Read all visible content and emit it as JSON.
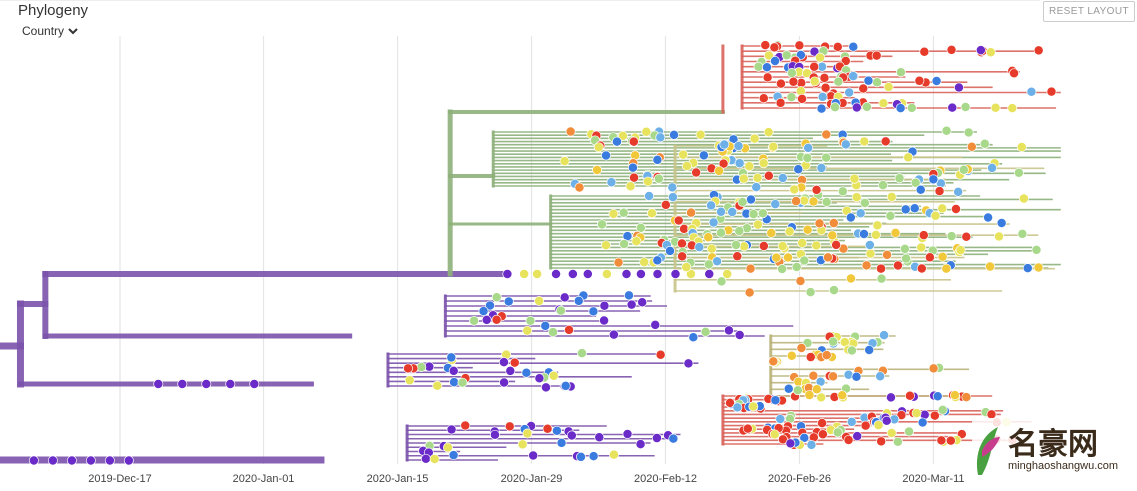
{
  "header": {
    "title": "Phylogeny",
    "color_by": "Country",
    "reset_label": "RESET LAYOUT"
  },
  "chart_data": {
    "type": "phylogenetic-tree",
    "title": "Phylogeny",
    "xlabel": "",
    "x_axis": {
      "type": "date",
      "ticks": [
        "2019-Dec-17",
        "2020-Jan-01",
        "2020-Jan-15",
        "2020-Jan-29",
        "2020-Feb-12",
        "2020-Feb-26",
        "2020-Mar-11"
      ],
      "range": [
        "2019-Dec-03",
        "2020-Mar-25"
      ]
    },
    "grid": true,
    "clades": [
      {
        "name": "purple",
        "color": "#7b52ab",
        "root_date": "2019-Dec-03"
      },
      {
        "name": "green",
        "color": "#8db07a",
        "root_date": "2020-Jan-15"
      },
      {
        "name": "red",
        "color": "#d9635a",
        "root_date": "2020-Feb-12"
      }
    ],
    "tip_colors": [
      "#6a2bc9",
      "#3a7be0",
      "#6db0e8",
      "#a8d98b",
      "#e8e35c",
      "#f0c83a",
      "#e63a2a",
      "#f08c3a"
    ]
  },
  "watermark": {
    "main": "名豪网",
    "sub": "minghaoshangwu.com"
  }
}
